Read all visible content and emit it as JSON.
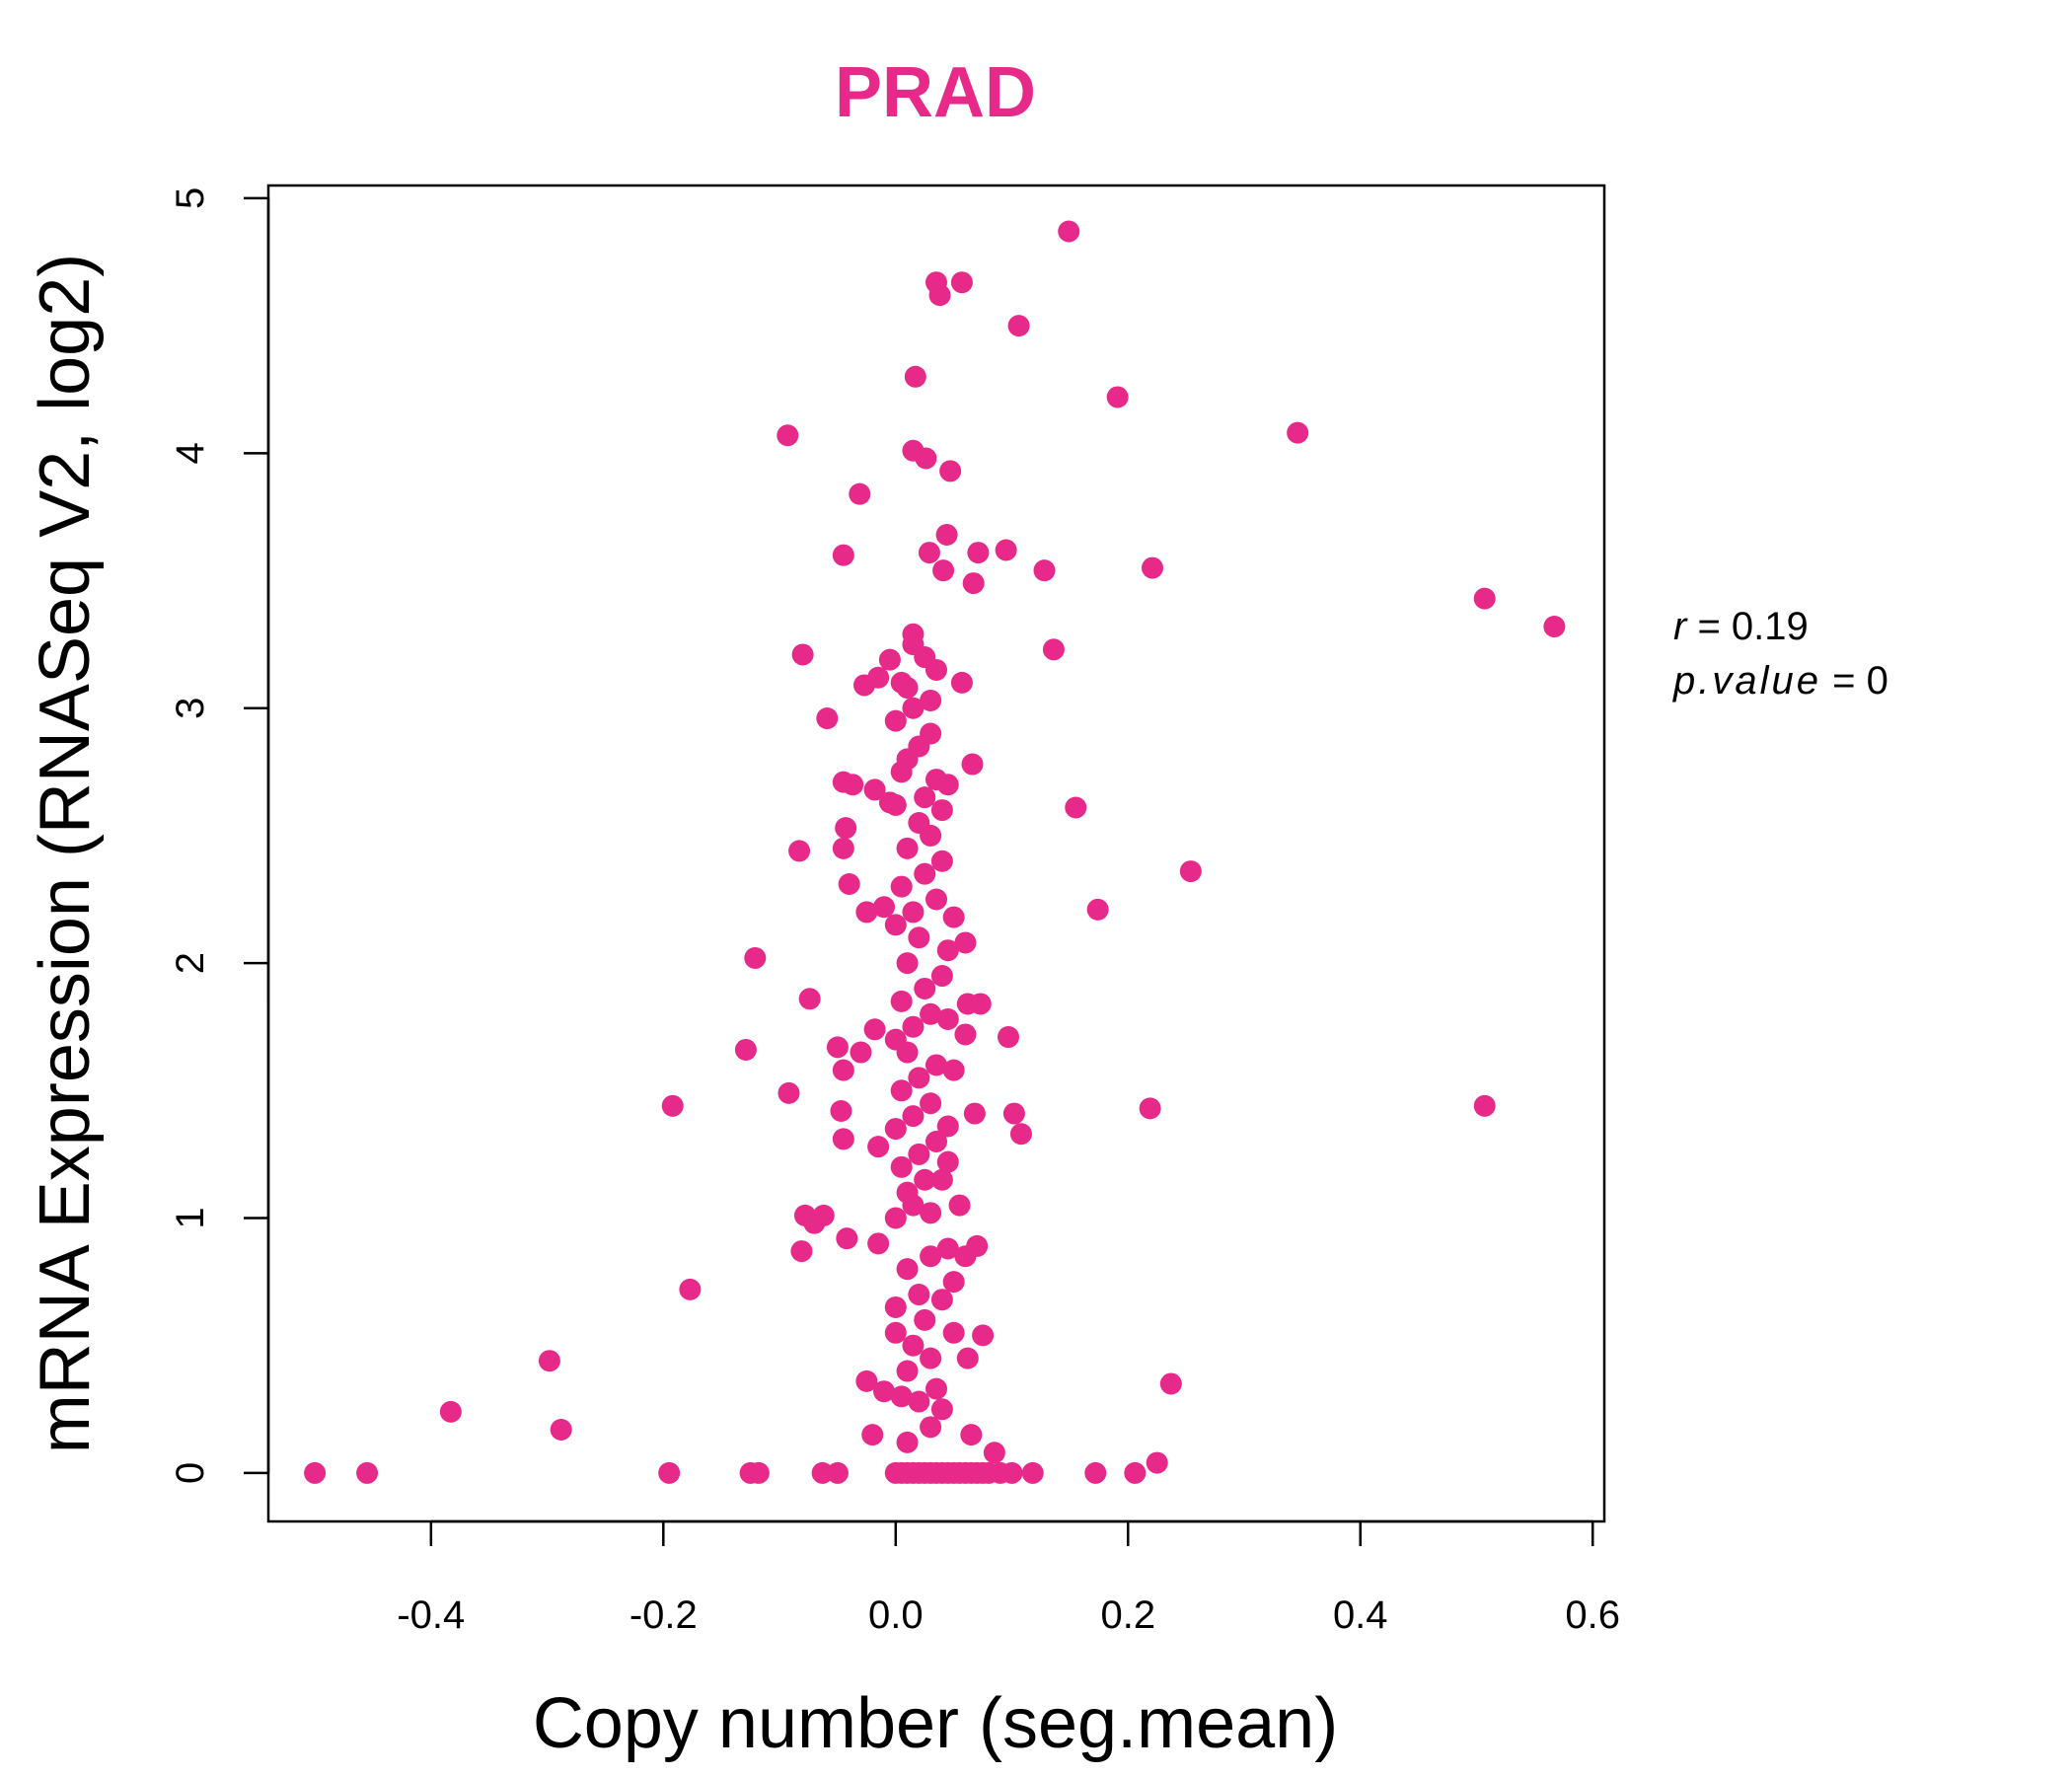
{
  "chart_data": {
    "type": "scatter",
    "title": "PRAD",
    "xlabel": "Copy number (seg.mean)",
    "ylabel": "mRNA Expression (RNASeq V2, log2)",
    "xlim": [
      -0.54,
      0.61
    ],
    "ylim": [
      -0.19,
      5.05
    ],
    "xticks": [
      -0.4,
      -0.2,
      0.0,
      0.2,
      0.4,
      0.6
    ],
    "xtick_labels": [
      "-0.4",
      "-0.2",
      "0.0",
      "0.2",
      "0.4",
      "0.6"
    ],
    "yticks": [
      0,
      1,
      2,
      3,
      4,
      5
    ],
    "ytick_labels": [
      "0",
      "1",
      "2",
      "3",
      "4",
      "5"
    ],
    "grid": false,
    "point_color": "#E7298A",
    "annotations": {
      "r_label": "r",
      "r_value": "0.19",
      "p_label": "p.value",
      "p_value": "0"
    },
    "points": [
      [
        -0.5,
        0
      ],
      [
        -0.455,
        0
      ],
      [
        -0.195,
        0
      ],
      [
        -0.125,
        0
      ],
      [
        -0.118,
        0
      ],
      [
        -0.063,
        0
      ],
      [
        -0.05,
        0
      ],
      [
        0.0,
        0
      ],
      [
        0.005,
        0
      ],
      [
        0.01,
        0
      ],
      [
        0.015,
        0
      ],
      [
        0.02,
        0
      ],
      [
        0.025,
        0
      ],
      [
        0.03,
        0
      ],
      [
        0.035,
        0
      ],
      [
        0.04,
        0
      ],
      [
        0.045,
        0
      ],
      [
        0.05,
        0
      ],
      [
        0.055,
        0
      ],
      [
        0.06,
        0
      ],
      [
        0.065,
        0
      ],
      [
        0.07,
        0
      ],
      [
        0.075,
        0
      ],
      [
        0.08,
        0
      ],
      [
        0.09,
        0
      ],
      [
        0.1,
        0
      ],
      [
        0.118,
        0
      ],
      [
        0.172,
        0
      ],
      [
        0.206,
        0
      ],
      [
        0.225,
        0.04
      ],
      [
        0.085,
        0.08
      ],
      [
        0.065,
        0.15
      ],
      [
        -0.02,
        0.15
      ],
      [
        0.01,
        0.12
      ],
      [
        0.03,
        0.18
      ],
      [
        -0.383,
        0.24
      ],
      [
        -0.288,
        0.17
      ],
      [
        -0.298,
        0.44
      ],
      [
        0.237,
        0.35
      ],
      [
        -0.177,
        0.72
      ],
      [
        -0.025,
        0.36
      ],
      [
        -0.01,
        0.32
      ],
      [
        0.005,
        0.3
      ],
      [
        0.02,
        0.28
      ],
      [
        0.035,
        0.33
      ],
      [
        0.04,
        0.25
      ],
      [
        0.01,
        0.4
      ],
      [
        0.03,
        0.45
      ],
      [
        0.062,
        0.45
      ],
      [
        0.075,
        0.54
      ],
      [
        0.015,
        0.5
      ],
      [
        0.0,
        0.55
      ],
      [
        0.025,
        0.6
      ],
      [
        0.05,
        0.55
      ],
      [
        0.0,
        0.65
      ],
      [
        0.02,
        0.7
      ],
      [
        0.04,
        0.68
      ],
      [
        0.05,
        0.75
      ],
      [
        0.01,
        0.8
      ],
      [
        0.03,
        0.85
      ],
      [
        0.06,
        0.85
      ],
      [
        0.07,
        0.89
      ],
      [
        0.045,
        0.88
      ],
      [
        -0.015,
        0.9
      ],
      [
        -0.042,
        0.92
      ],
      [
        -0.081,
        0.87
      ],
      [
        -0.078,
        1.01
      ],
      [
        -0.07,
        0.98
      ],
      [
        -0.062,
        1.01
      ],
      [
        0.0,
        1.0
      ],
      [
        0.015,
        1.05
      ],
      [
        0.03,
        1.02
      ],
      [
        0.055,
        1.05
      ],
      [
        0.01,
        1.1
      ],
      [
        0.025,
        1.15
      ],
      [
        0.04,
        1.15
      ],
      [
        0.005,
        1.2
      ],
      [
        0.02,
        1.25
      ],
      [
        0.035,
        1.3
      ],
      [
        -0.015,
        1.28
      ],
      [
        0.045,
        1.22
      ],
      [
        -0.045,
        1.31
      ],
      [
        -0.047,
        1.42
      ],
      [
        -0.092,
        1.49
      ],
      [
        -0.192,
        1.44
      ],
      [
        0.219,
        1.43
      ],
      [
        0.507,
        1.44
      ],
      [
        0.102,
        1.41
      ],
      [
        0.108,
        1.33
      ],
      [
        0.068,
        1.41
      ],
      [
        0.045,
        1.36
      ],
      [
        0.0,
        1.35
      ],
      [
        0.015,
        1.4
      ],
      [
        0.03,
        1.45
      ],
      [
        0.005,
        1.5
      ],
      [
        0.02,
        1.55
      ],
      [
        0.035,
        1.6
      ],
      [
        0.05,
        1.58
      ],
      [
        0.01,
        1.65
      ],
      [
        -0.129,
        1.66
      ],
      [
        -0.045,
        1.58
      ],
      [
        -0.03,
        1.65
      ],
      [
        -0.05,
        1.67
      ],
      [
        -0.018,
        1.74
      ],
      [
        0.0,
        1.7
      ],
      [
        0.015,
        1.75
      ],
      [
        0.03,
        1.8
      ],
      [
        0.045,
        1.78
      ],
      [
        0.06,
        1.72
      ],
      [
        0.073,
        1.84
      ],
      [
        0.062,
        1.84
      ],
      [
        0.097,
        1.71
      ],
      [
        0.005,
        1.85
      ],
      [
        0.025,
        1.9
      ],
      [
        0.04,
        1.95
      ],
      [
        0.01,
        2.0
      ],
      [
        -0.074,
        1.86
      ],
      [
        -0.121,
        2.02
      ],
      [
        0.06,
        2.08
      ],
      [
        0.045,
        2.05
      ],
      [
        0.02,
        2.1
      ],
      [
        0.0,
        2.15
      ],
      [
        0.015,
        2.2
      ],
      [
        0.035,
        2.25
      ],
      [
        0.05,
        2.18
      ],
      [
        -0.025,
        2.2
      ],
      [
        -0.01,
        2.22
      ],
      [
        0.174,
        2.21
      ],
      [
        0.254,
        2.36
      ],
      [
        -0.04,
        2.31
      ],
      [
        0.005,
        2.3
      ],
      [
        0.025,
        2.35
      ],
      [
        0.04,
        2.4
      ],
      [
        0.01,
        2.45
      ],
      [
        0.03,
        2.5
      ],
      [
        -0.045,
        2.45
      ],
      [
        -0.083,
        2.44
      ],
      [
        0.02,
        2.55
      ],
      [
        0.04,
        2.6
      ],
      [
        0.0,
        2.62
      ],
      [
        -0.043,
        2.53
      ],
      [
        -0.018,
        2.68
      ],
      [
        -0.005,
        2.63
      ],
      [
        0.025,
        2.65
      ],
      [
        0.045,
        2.7
      ],
      [
        -0.045,
        2.71
      ],
      [
        -0.037,
        2.7
      ],
      [
        0.005,
        2.75
      ],
      [
        0.01,
        2.8
      ],
      [
        0.035,
        2.72
      ],
      [
        0.066,
        2.78
      ],
      [
        0.155,
        2.61
      ],
      [
        0.02,
        2.85
      ],
      [
        0.03,
        2.9
      ],
      [
        0.0,
        2.95
      ],
      [
        -0.059,
        2.96
      ],
      [
        0.015,
        3.0
      ],
      [
        0.03,
        3.03
      ],
      [
        -0.027,
        3.09
      ],
      [
        -0.015,
        3.12
      ],
      [
        0.005,
        3.1
      ],
      [
        0.01,
        3.08
      ],
      [
        0.057,
        3.1
      ],
      [
        0.035,
        3.15
      ],
      [
        0.025,
        3.2
      ],
      [
        -0.005,
        3.19
      ],
      [
        0.015,
        3.25
      ],
      [
        0.015,
        3.29
      ],
      [
        -0.08,
        3.21
      ],
      [
        0.136,
        3.23
      ],
      [
        0.067,
        3.49
      ],
      [
        0.041,
        3.54
      ],
      [
        0.029,
        3.61
      ],
      [
        0.044,
        3.68
      ],
      [
        0.071,
        3.61
      ],
      [
        0.095,
        3.62
      ],
      [
        0.128,
        3.54
      ],
      [
        0.221,
        3.55
      ],
      [
        -0.045,
        3.6
      ],
      [
        -0.031,
        3.84
      ],
      [
        0.047,
        3.93
      ],
      [
        0.026,
        3.98
      ],
      [
        0.015,
        4.01
      ],
      [
        -0.093,
        4.07
      ],
      [
        0.346,
        4.08
      ],
      [
        0.507,
        3.43
      ],
      [
        0.567,
        3.32
      ],
      [
        0.191,
        4.22
      ],
      [
        0.017,
        4.3
      ],
      [
        0.106,
        4.5
      ],
      [
        0.035,
        4.67
      ],
      [
        0.038,
        4.62
      ],
      [
        0.057,
        4.67
      ],
      [
        0.149,
        4.87
      ]
    ]
  }
}
